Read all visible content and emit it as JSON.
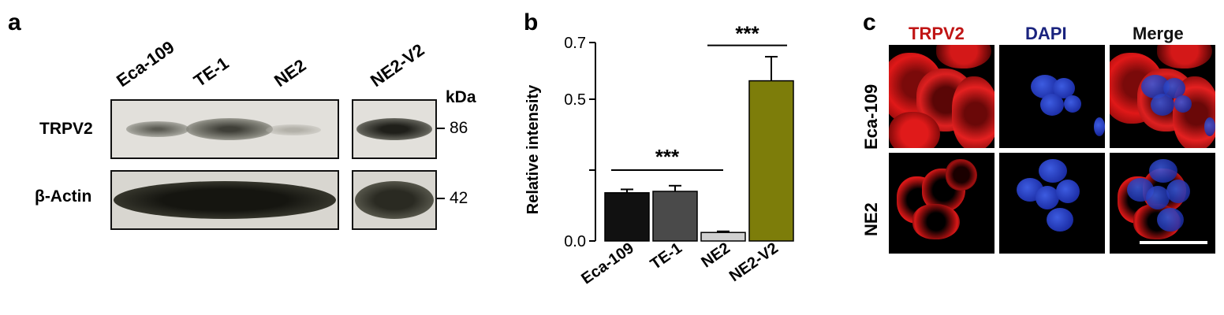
{
  "panel_a": {
    "label": "a",
    "lanes": [
      "Eca-109",
      "TE-1",
      "NE2",
      "NE2-V2"
    ],
    "rows": [
      "TRPV2",
      "β-Actin"
    ],
    "kda_label": "kDa",
    "mw_markers": [
      "86",
      "42"
    ]
  },
  "panel_b": {
    "label": "b"
  },
  "panel_c": {
    "label": "c",
    "columns": [
      "TRPV2",
      "DAPI",
      "Merge"
    ],
    "rows": [
      "Eca-109",
      "NE2"
    ],
    "colors": {
      "trpv2": "#cc1111",
      "dapi": "#1a237e",
      "merge": "#111111"
    }
  },
  "chart_data": {
    "type": "bar",
    "categories": [
      "Eca-109",
      "TE-1",
      "NE2",
      "NE2-V2"
    ],
    "values": [
      0.17,
      0.175,
      0.03,
      0.565
    ],
    "errors": [
      0.012,
      0.02,
      0.004,
      0.085
    ],
    "colors": [
      "#111111",
      "#4a4a4a",
      "#d0d0d0",
      "#7d7d0a"
    ],
    "title": "",
    "xlabel": "",
    "ylabel": "Relative intensity",
    "ylim": [
      0,
      0.7
    ],
    "yticks": [
      "0.0",
      "0.5",
      "0.7"
    ],
    "ytick_values": [
      0,
      0.5,
      0.7
    ],
    "significance": [
      {
        "from": 0,
        "to": 2,
        "label": "***"
      },
      {
        "from": 2,
        "to": 3,
        "label": "***"
      }
    ]
  }
}
